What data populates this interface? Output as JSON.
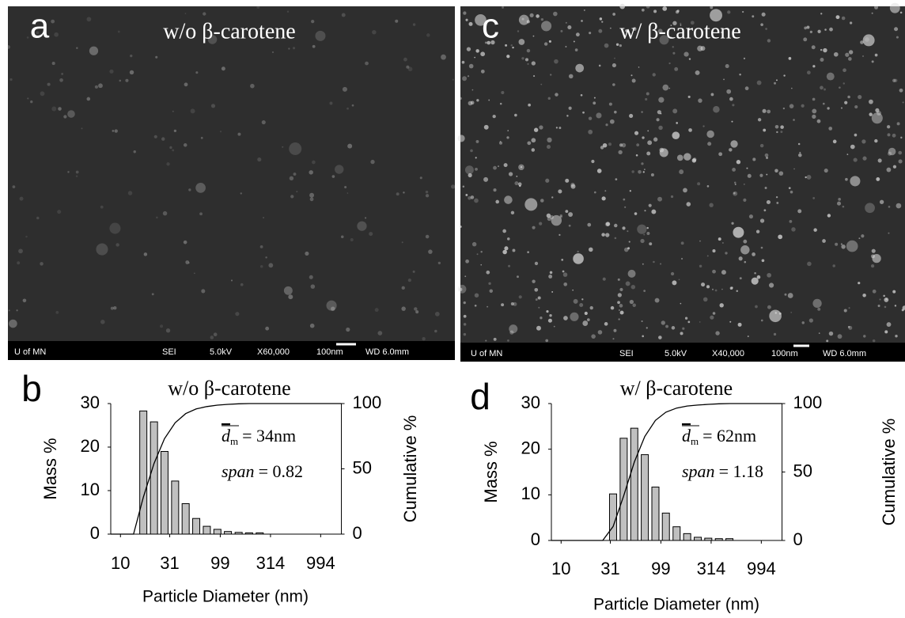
{
  "images": [
    {
      "letter": "a",
      "label": "w/o β-carotene",
      "footer": [
        "U of MN",
        "SEI",
        "5.0kV",
        "X60,000",
        "100nm",
        "WD 6.0mm"
      ]
    },
    {
      "letter": "c",
      "label": "w/ β-carotene",
      "footer": [
        "U of MN",
        "SEI",
        "5.0kV",
        "X40,000",
        "100nm",
        "WD 6.0mm"
      ]
    }
  ],
  "chart_data": [
    {
      "type": "bar",
      "letter": "b",
      "title": "w/o β-carotene",
      "x_label": "Particle Diameter (nm)",
      "y_label": "Mass %",
      "y2_label": "Cumulative %",
      "annotations": {
        "dm": {
          "symbol": "d",
          "subscript": "m",
          "text": "= 34nm"
        },
        "span": {
          "symbol": "span",
          "text": "= 0.82"
        }
      },
      "xlim": [
        8,
        1600
      ],
      "xlog": true,
      "xticks": [
        10,
        31,
        99,
        314,
        994
      ],
      "ylim": [
        0,
        30
      ],
      "yticks": [
        0,
        10,
        20,
        30
      ],
      "y2lim": [
        0,
        100
      ],
      "y2ticks": [
        0,
        50,
        100
      ],
      "series": [
        {
          "color": "#c0c0c0",
          "x": [
            16.9,
            21.6,
            27.5,
            35.1,
            44.7,
            57,
            72.7,
            92.7,
            118,
            151,
            192,
            245
          ],
          "values": [
            28.3,
            25.8,
            19,
            12.2,
            7,
            3.6,
            1.8,
            1.1,
            0.6,
            0.4,
            0.3,
            0.3
          ]
        },
        {
          "type": "line",
          "axis": "y2",
          "color": "#000000",
          "x": [
            8,
            13.5,
            16.9,
            21.6,
            27.5,
            35.1,
            44.7,
            57,
            72.7,
            92.7,
            118,
            151,
            192,
            245,
            1600
          ],
          "values": [
            0,
            0,
            28.3,
            54.1,
            73.1,
            85.3,
            92.3,
            95.9,
            97.7,
            98.8,
            99.4,
            99.8,
            100,
            100,
            100
          ]
        }
      ]
    },
    {
      "type": "bar",
      "letter": "d",
      "title": "w/ β-carotene",
      "x_label": "Particle Diameter (nm)",
      "y_label": "Mass %",
      "y2_label": "Cumulative %",
      "annotations": {
        "dm": {
          "symbol": "d",
          "subscript": "m",
          "text": "= 62nm"
        },
        "span": {
          "symbol": "span",
          "text": "= 1.18"
        }
      },
      "xlim": [
        8,
        1600
      ],
      "xlog": true,
      "xticks": [
        10,
        31,
        99,
        314,
        994
      ],
      "ylim": [
        0,
        30
      ],
      "yticks": [
        0,
        10,
        20,
        30
      ],
      "y2lim": [
        0,
        100
      ],
      "y2ticks": [
        0,
        50,
        100
      ],
      "series": [
        {
          "color": "#c0c0c0",
          "x": [
            33,
            42.1,
            53.7,
            68.4,
            87.3,
            111,
            142,
            181,
            231,
            294,
            375,
            478
          ],
          "values": [
            10.2,
            22.4,
            24.6,
            18.8,
            11.7,
            6,
            3,
            1.5,
            0.7,
            0.5,
            0.4,
            0.4
          ]
        },
        {
          "type": "line",
          "axis": "y2",
          "color": "#000000",
          "x": [
            8,
            26,
            33,
            42.1,
            53.7,
            68.4,
            87.3,
            111,
            142,
            181,
            231,
            294,
            375,
            478,
            1600
          ],
          "values": [
            0,
            0,
            10.2,
            32.6,
            57.2,
            76,
            87.7,
            93.7,
            96.7,
            98.2,
            98.9,
            99.4,
            99.8,
            100,
            100
          ]
        }
      ]
    }
  ]
}
